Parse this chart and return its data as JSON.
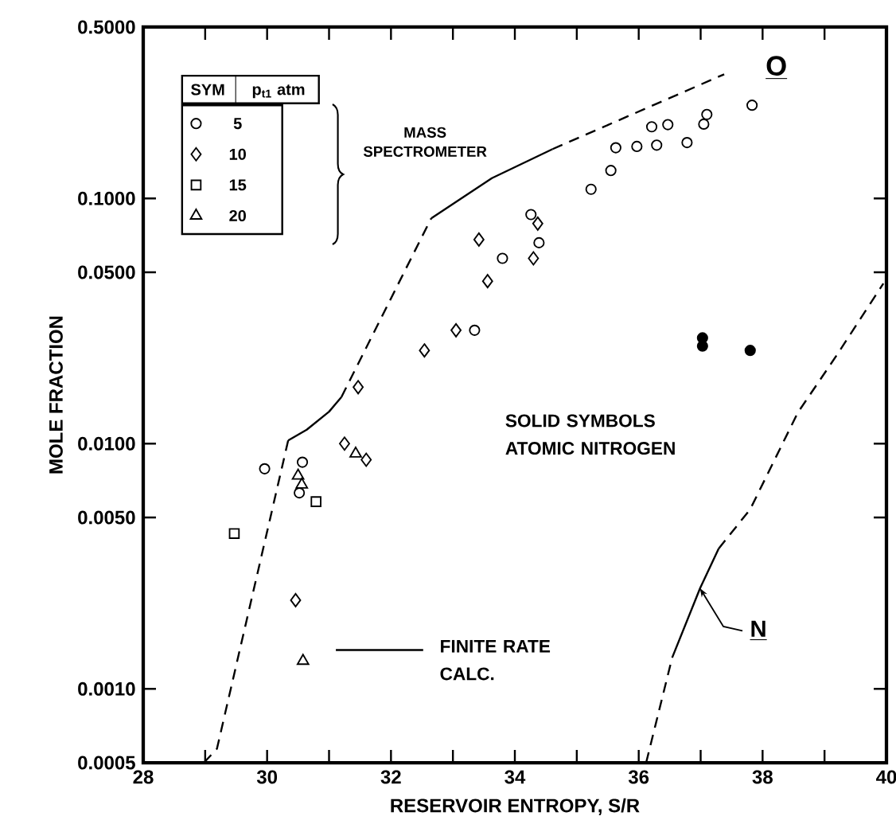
{
  "chart_data": {
    "type": "scatter",
    "xlabel": "RESERVOIR ENTROPY, S/R",
    "ylabel": "MOLE FRACTION",
    "legend_title": "p$_{t1}$ atm",
    "legend": "top left",
    "log": "y",
    "xlim": [
      28,
      40
    ],
    "ylim": [
      0.0005,
      0.5
    ],
    "xticks": [
      28,
      {
        "value": 29,
        "label": null
      },
      30,
      {
        "value": 31,
        "label": null
      },
      32,
      {
        "value": 33,
        "label": null
      },
      34,
      {
        "value": 35,
        "label": null
      },
      36,
      {
        "value": 37,
        "label": null
      },
      38,
      {
        "value": 39,
        "label": null
      },
      40
    ],
    "yticks": [
      0.0005,
      {
        "value": 0.001,
        "label": "0.0010"
      },
      {
        "value": 0.005,
        "label": "0.0050"
      },
      {
        "value": 0.01,
        "label": "0.0100"
      },
      {
        "value": 0.05,
        "label": "0.0500"
      },
      {
        "value": 0.1,
        "label": "0.1000"
      },
      {
        "value": 0.5,
        "label": "0.5000"
      }
    ],
    "annotations": [
      "MASS SPECTROMETER",
      "SOLID SYMBOLS ATOMIC NITROGEN",
      "FINITE RATE CALC.",
      {
        "text": "O",
        "x": 37.38,
        "y": 0.321
      },
      {
        "text": "N",
        "x": 36.99,
        "y": 0.00257
      },
      "SYM"
    ],
    "series": [
      {
        "type": "line",
        "line_style": "dashed",
        "color": "#000000",
        "x": [
          28.98,
          29.19,
          30.34
        ],
        "values": [
          0.0005,
          0.00057,
          0.0103
        ]
      },
      {
        "type": "line",
        "line_style": "solid",
        "color": "#000000",
        "x": [
          30.34,
          30.64,
          31.0,
          31.2
        ],
        "values": [
          0.0103,
          0.0114,
          0.0135,
          0.0155
        ]
      },
      {
        "type": "line",
        "line_style": "dashed",
        "color": "#000000",
        "x": [
          31.2,
          32.65
        ],
        "values": [
          0.0155,
          0.083
        ]
      },
      {
        "type": "line",
        "line_style": "solid",
        "color": "#000000",
        "x": [
          32.65,
          33.63,
          34.61
        ],
        "values": [
          0.083,
          0.121,
          0.159
        ]
      },
      {
        "type": "line",
        "line_style": "dashed",
        "color": "#000000",
        "x": [
          34.61,
          37.38
        ],
        "values": [
          0.159,
          0.321
        ]
      },
      {
        "type": "line",
        "line_style": "dashed",
        "color": "#000000",
        "x": [
          36.12,
          36.54
        ],
        "values": [
          0.0005,
          0.00134
        ]
      },
      {
        "type": "line",
        "line_style": "solid",
        "color": "#000000",
        "x": [
          36.54,
          36.99,
          37.29
        ],
        "values": [
          0.00134,
          0.00257,
          0.00373
        ]
      },
      {
        "type": "line",
        "line_style": "dashed",
        "color": "#000000",
        "x": [
          37.29,
          37.8,
          38.57,
          39.2,
          39.95
        ],
        "values": [
          0.00373,
          0.0054,
          0.0134,
          0.023,
          0.045
        ]
      },
      {
        "name": "5",
        "marker": "circle",
        "color": "#000000",
        "x": [
          29.96,
          30.57,
          30.52,
          33.35,
          33.8,
          34.26,
          34.39,
          35.23,
          35.55,
          35.63,
          35.97,
          36.29,
          36.21,
          36.47,
          36.78,
          37.05,
          37.1,
          37.83
        ],
        "values": [
          0.0079,
          0.0084,
          0.0063,
          0.029,
          0.057,
          0.086,
          0.066,
          0.109,
          0.13,
          0.161,
          0.163,
          0.165,
          0.196,
          0.2,
          0.169,
          0.201,
          0.22,
          0.24
        ]
      },
      {
        "name": "10",
        "marker": "diamond",
        "color": "#000000",
        "x": [
          31.25,
          31.6,
          30.46,
          31.47,
          32.54,
          33.05,
          33.42,
          33.56,
          34.37,
          34.3
        ],
        "values": [
          0.01,
          0.0086,
          0.0023,
          0.017,
          0.024,
          0.029,
          0.068,
          0.046,
          0.079,
          0.057
        ]
      },
      {
        "name": "15",
        "marker": "square",
        "color": "#000000",
        "x": [
          29.47,
          30.79
        ],
        "values": [
          0.0043,
          0.0058
        ]
      },
      {
        "name": "20",
        "marker": "triangle",
        "color": "#000000",
        "x": [
          31.43,
          30.5,
          30.56,
          30.58
        ],
        "values": [
          0.0091,
          0.0074,
          0.0068,
          0.0013
        ]
      },
      {
        "marker": "circle",
        "color": "#000000",
        "x": [
          37.03,
          37.03,
          37.8
        ],
        "values": [
          0.027,
          0.025,
          0.024
        ]
      }
    ]
  }
}
